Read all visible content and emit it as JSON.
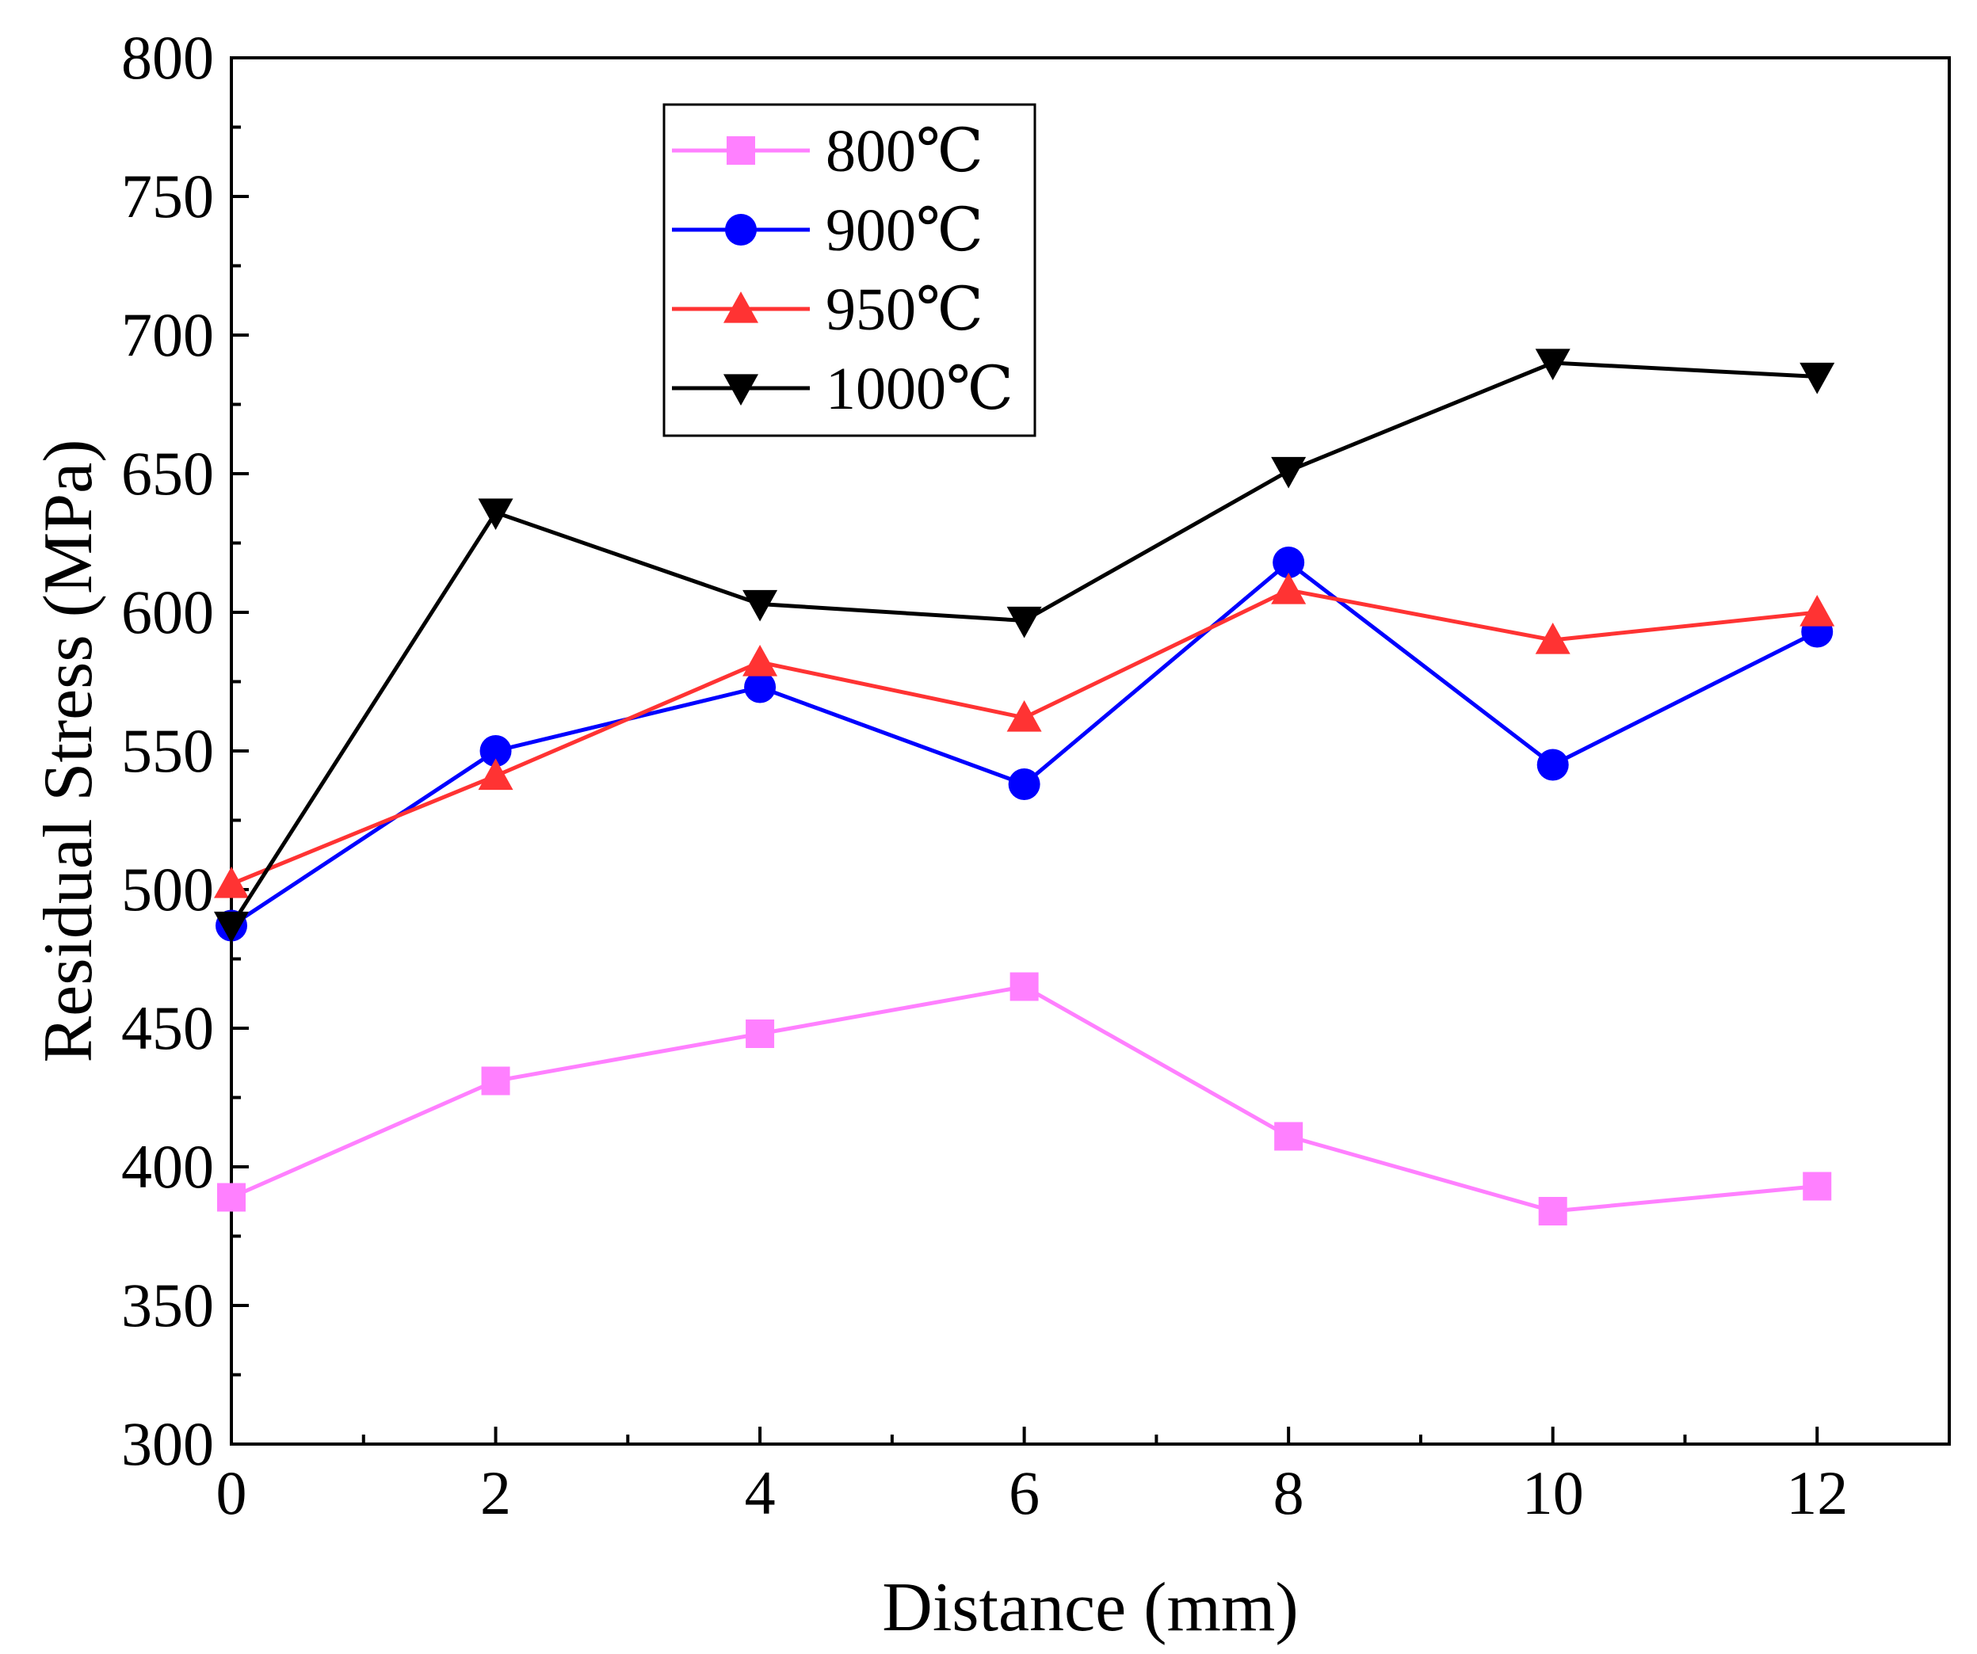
{
  "chart_data": {
    "type": "line",
    "title": "",
    "xlabel": "Distance (mm)",
    "ylabel": "Residual Stress (MPa)",
    "xlim": [
      0,
      13
    ],
    "ylim": [
      300,
      800
    ],
    "x_ticks": [
      0,
      2,
      4,
      6,
      8,
      10,
      12
    ],
    "y_ticks": [
      300,
      350,
      400,
      450,
      500,
      550,
      600,
      650,
      700,
      750,
      800
    ],
    "grid": false,
    "legend_position": "top-left",
    "x": [
      0,
      2,
      4,
      6,
      8,
      10,
      12
    ],
    "series": [
      {
        "name": "800℃",
        "color": "#ff80ff",
        "marker": "square",
        "values": [
          389,
          431,
          448,
          465,
          411,
          384,
          393
        ]
      },
      {
        "name": "900℃",
        "color": "#0000ff",
        "marker": "circle",
        "values": [
          487,
          550,
          573,
          538,
          618,
          545,
          593
        ]
      },
      {
        "name": "950℃",
        "color": "#ff3333",
        "marker": "triangle-up",
        "values": [
          502,
          541,
          582,
          562,
          608,
          590,
          600
        ]
      },
      {
        "name": "1000℃",
        "color": "#000000",
        "marker": "triangle-down",
        "values": [
          487,
          636,
          603,
          597,
          651,
          690,
          685
        ]
      }
    ]
  }
}
